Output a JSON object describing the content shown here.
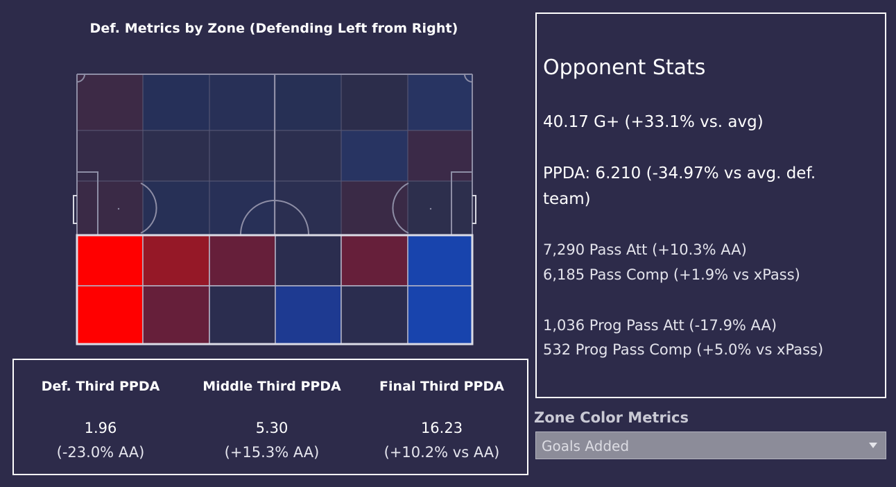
{
  "pitch": {
    "title": "Def. Metrics by Zone (Defending Left from Right)",
    "upper_rows": [
      [
        "#3d2a46",
        "#263059",
        "#283057",
        "#273055",
        "#2c2d4b",
        "#283462"
      ],
      [
        "#352b48",
        "#2d2f4e",
        "#2b2f4f",
        "#2c2f4f",
        "#283462",
        "#3b2a48"
      ],
      [
        "#3a2a46",
        "#273056",
        "#283057",
        "#2b2f51",
        "#3a2a46",
        "#2d2f4d"
      ]
    ],
    "lower_rows": [
      [
        "#ff0000",
        "#951827",
        "#661f3a",
        "#2b2d4f",
        "#661f3a",
        "#1844ad"
      ],
      [
        "#ff0000",
        "#661f3a",
        "#2b2d4f",
        "#1e3a91",
        "#2b2d4f",
        "#1844ad"
      ]
    ]
  },
  "ppda": [
    {
      "label": "Def. Third PPDA",
      "value": "1.96",
      "aa": "(-23.0% AA)"
    },
    {
      "label": "Middle Third PPDA",
      "value": "5.30",
      "aa": "(+15.3% AA)"
    },
    {
      "label": "Final Third PPDA",
      "value": "16.23",
      "aa": "(+10.2% vs AA)"
    }
  ],
  "stats": {
    "title": "Opponent Stats",
    "g_plus": "40.17 G+ (+33.1% vs. avg)",
    "ppda_line1": "PPDA: 6.210 (-34.97% vs avg. def.",
    "ppda_line2": "team)",
    "pass_att": "7,290 Pass Att (+10.3% AA)",
    "pass_comp": "6,185  Pass Comp (+1.9% vs xPass)",
    "prog_att": "1,036  Prog Pass Att  (-17.9% AA)",
    "prog_comp": "532  Prog Pass Comp (+5.0% vs xPass)"
  },
  "zone_metric": {
    "label": "Zone Color Metrics",
    "selected": "Goals Added"
  }
}
